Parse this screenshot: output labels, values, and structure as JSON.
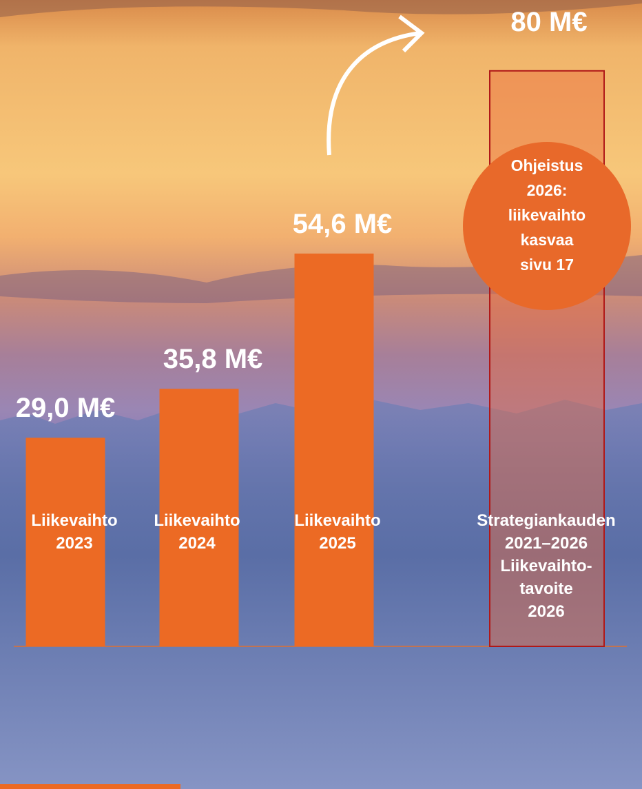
{
  "chart_data": {
    "type": "bar",
    "categories": [
      "Liikevaihto\n2023",
      "Liikevaihto\n2024",
      "Liikevaihto\n2025",
      "Strategiankauden\n2021–2026\nLiikevaihto-\ntavoite\n2026"
    ],
    "values": [
      29.0,
      35.8,
      54.6,
      80
    ],
    "value_labels": [
      "29,0 M€",
      "35,8 M€",
      "54,6 M€",
      "80 M€"
    ],
    "colors": [
      "#ec6a24",
      "#ec6a24",
      "#ec6a24",
      "rgba(236,106,60,0.45)"
    ],
    "annotation": "Ohjeistus\n2026:\nliikevaihto\nkasvaa\nsivu 17"
  }
}
